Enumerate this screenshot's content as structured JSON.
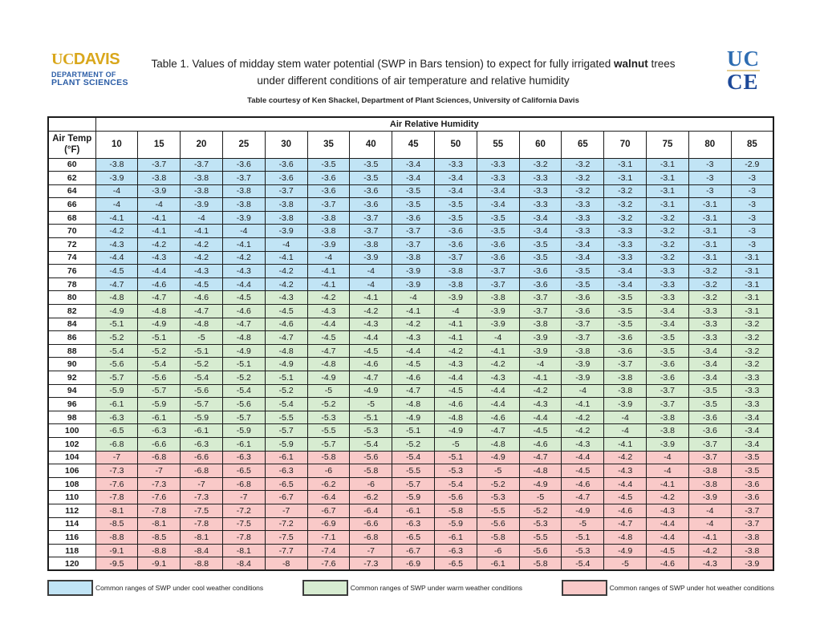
{
  "header": {
    "ucdavis_logo": {
      "uc": "UC",
      "davis": "DAVIS",
      "dept_line1": "DEPARTMENT OF",
      "dept_line2": "PLANT SCIENCES",
      "gold": "#d9a71c",
      "blue": "#2b5da6"
    },
    "title": {
      "line1_pre": "Table 1. Values of midday stem water potential (SWP in Bars tension) to expect for fully irrigated ",
      "line1_bold": "walnut",
      "line1_post": " trees",
      "line2": "under different conditions of air temperature and relative humidity",
      "courtesy": "Table courtesy of Ken Shackel, Department of Plant Sciences, University of California Davis"
    },
    "ucce_logo": {
      "top": "UC",
      "bottom": "CE",
      "top_color": "#2e6db2",
      "bottom_color": "#1c4898"
    }
  },
  "chart_data": {
    "type": "table",
    "title": "Values of midday stem water potential (SWP in Bars tension) for fully irrigated walnut trees",
    "x_axis_label": "Air Relative Humidity",
    "corner_header_line1": "Air Temp",
    "corner_header_line2": "(°F)",
    "humidity_columns": [
      "10",
      "15",
      "20",
      "25",
      "30",
      "35",
      "40",
      "45",
      "50",
      "55",
      "60",
      "65",
      "70",
      "75",
      "80",
      "85"
    ],
    "zone_colors": {
      "cool": "#c1e4f5",
      "warm": "#d7ecd1",
      "hot": "#f9c9c8"
    },
    "rows": [
      {
        "temp": "60",
        "zone": "cool",
        "values": [
          "-3.8",
          "-3.7",
          "-3.7",
          "-3.6",
          "-3.6",
          "-3.5",
          "-3.5",
          "-3.4",
          "-3.3",
          "-3.3",
          "-3.2",
          "-3.2",
          "-3.1",
          "-3.1",
          "-3",
          "-2.9"
        ]
      },
      {
        "temp": "62",
        "zone": "cool",
        "values": [
          "-3.9",
          "-3.8",
          "-3.8",
          "-3.7",
          "-3.6",
          "-3.6",
          "-3.5",
          "-3.4",
          "-3.4",
          "-3.3",
          "-3.3",
          "-3.2",
          "-3.1",
          "-3.1",
          "-3",
          "-3"
        ]
      },
      {
        "temp": "64",
        "zone": "cool",
        "values": [
          "-4",
          "-3.9",
          "-3.8",
          "-3.8",
          "-3.7",
          "-3.6",
          "-3.6",
          "-3.5",
          "-3.4",
          "-3.4",
          "-3.3",
          "-3.2",
          "-3.2",
          "-3.1",
          "-3",
          "-3"
        ]
      },
      {
        "temp": "66",
        "zone": "cool",
        "values": [
          "-4",
          "-4",
          "-3.9",
          "-3.8",
          "-3.8",
          "-3.7",
          "-3.6",
          "-3.5",
          "-3.5",
          "-3.4",
          "-3.3",
          "-3.3",
          "-3.2",
          "-3.1",
          "-3.1",
          "-3"
        ]
      },
      {
        "temp": "68",
        "zone": "cool",
        "values": [
          "-4.1",
          "-4.1",
          "-4",
          "-3.9",
          "-3.8",
          "-3.8",
          "-3.7",
          "-3.6",
          "-3.5",
          "-3.5",
          "-3.4",
          "-3.3",
          "-3.2",
          "-3.2",
          "-3.1",
          "-3"
        ]
      },
      {
        "temp": "70",
        "zone": "cool",
        "values": [
          "-4.2",
          "-4.1",
          "-4.1",
          "-4",
          "-3.9",
          "-3.8",
          "-3.7",
          "-3.7",
          "-3.6",
          "-3.5",
          "-3.4",
          "-3.3",
          "-3.3",
          "-3.2",
          "-3.1",
          "-3"
        ]
      },
      {
        "temp": "72",
        "zone": "cool",
        "values": [
          "-4.3",
          "-4.2",
          "-4.2",
          "-4.1",
          "-4",
          "-3.9",
          "-3.8",
          "-3.7",
          "-3.6",
          "-3.6",
          "-3.5",
          "-3.4",
          "-3.3",
          "-3.2",
          "-3.1",
          "-3"
        ]
      },
      {
        "temp": "74",
        "zone": "cool",
        "values": [
          "-4.4",
          "-4.3",
          "-4.2",
          "-4.2",
          "-4.1",
          "-4",
          "-3.9",
          "-3.8",
          "-3.7",
          "-3.6",
          "-3.5",
          "-3.4",
          "-3.3",
          "-3.2",
          "-3.1",
          "-3.1"
        ]
      },
      {
        "temp": "76",
        "zone": "cool",
        "values": [
          "-4.5",
          "-4.4",
          "-4.3",
          "-4.3",
          "-4.2",
          "-4.1",
          "-4",
          "-3.9",
          "-3.8",
          "-3.7",
          "-3.6",
          "-3.5",
          "-3.4",
          "-3.3",
          "-3.2",
          "-3.1"
        ]
      },
      {
        "temp": "78",
        "zone": "cool",
        "values": [
          "-4.7",
          "-4.6",
          "-4.5",
          "-4.4",
          "-4.2",
          "-4.1",
          "-4",
          "-3.9",
          "-3.8",
          "-3.7",
          "-3.6",
          "-3.5",
          "-3.4",
          "-3.3",
          "-3.2",
          "-3.1"
        ]
      },
      {
        "temp": "80",
        "zone": "warm",
        "values": [
          "-4.8",
          "-4.7",
          "-4.6",
          "-4.5",
          "-4.3",
          "-4.2",
          "-4.1",
          "-4",
          "-3.9",
          "-3.8",
          "-3.7",
          "-3.6",
          "-3.5",
          "-3.3",
          "-3.2",
          "-3.1"
        ]
      },
      {
        "temp": "82",
        "zone": "warm",
        "values": [
          "-4.9",
          "-4.8",
          "-4.7",
          "-4.6",
          "-4.5",
          "-4.3",
          "-4.2",
          "-4.1",
          "-4",
          "-3.9",
          "-3.7",
          "-3.6",
          "-3.5",
          "-3.4",
          "-3.3",
          "-3.1"
        ]
      },
      {
        "temp": "84",
        "zone": "warm",
        "values": [
          "-5.1",
          "-4.9",
          "-4.8",
          "-4.7",
          "-4.6",
          "-4.4",
          "-4.3",
          "-4.2",
          "-4.1",
          "-3.9",
          "-3.8",
          "-3.7",
          "-3.5",
          "-3.4",
          "-3.3",
          "-3.2"
        ]
      },
      {
        "temp": "86",
        "zone": "warm",
        "values": [
          "-5.2",
          "-5.1",
          "-5",
          "-4.8",
          "-4.7",
          "-4.5",
          "-4.4",
          "-4.3",
          "-4.1",
          "-4",
          "-3.9",
          "-3.7",
          "-3.6",
          "-3.5",
          "-3.3",
          "-3.2"
        ]
      },
      {
        "temp": "88",
        "zone": "warm",
        "values": [
          "-5.4",
          "-5.2",
          "-5.1",
          "-4.9",
          "-4.8",
          "-4.7",
          "-4.5",
          "-4.4",
          "-4.2",
          "-4.1",
          "-3.9",
          "-3.8",
          "-3.6",
          "-3.5",
          "-3.4",
          "-3.2"
        ]
      },
      {
        "temp": "90",
        "zone": "warm",
        "values": [
          "-5.6",
          "-5.4",
          "-5.2",
          "-5.1",
          "-4.9",
          "-4.8",
          "-4.6",
          "-4.5",
          "-4.3",
          "-4.2",
          "-4",
          "-3.9",
          "-3.7",
          "-3.6",
          "-3.4",
          "-3.2"
        ]
      },
      {
        "temp": "92",
        "zone": "warm",
        "values": [
          "-5.7",
          "-5.6",
          "-5.4",
          "-5.2",
          "-5.1",
          "-4.9",
          "-4.7",
          "-4.6",
          "-4.4",
          "-4.3",
          "-4.1",
          "-3.9",
          "-3.8",
          "-3.6",
          "-3.4",
          "-3.3"
        ]
      },
      {
        "temp": "94",
        "zone": "warm",
        "values": [
          "-5.9",
          "-5.7",
          "-5.6",
          "-5.4",
          "-5.2",
          "-5",
          "-4.9",
          "-4.7",
          "-4.5",
          "-4.4",
          "-4.2",
          "-4",
          "-3.8",
          "-3.7",
          "-3.5",
          "-3.3"
        ]
      },
      {
        "temp": "96",
        "zone": "warm",
        "values": [
          "-6.1",
          "-5.9",
          "-5.7",
          "-5.6",
          "-5.4",
          "-5.2",
          "-5",
          "-4.8",
          "-4.6",
          "-4.4",
          "-4.3",
          "-4.1",
          "-3.9",
          "-3.7",
          "-3.5",
          "-3.3"
        ]
      },
      {
        "temp": "98",
        "zone": "warm",
        "values": [
          "-6.3",
          "-6.1",
          "-5.9",
          "-5.7",
          "-5.5",
          "-5.3",
          "-5.1",
          "-4.9",
          "-4.8",
          "-4.6",
          "-4.4",
          "-4.2",
          "-4",
          "-3.8",
          "-3.6",
          "-3.4"
        ]
      },
      {
        "temp": "100",
        "zone": "warm",
        "values": [
          "-6.5",
          "-6.3",
          "-6.1",
          "-5.9",
          "-5.7",
          "-5.5",
          "-5.3",
          "-5.1",
          "-4.9",
          "-4.7",
          "-4.5",
          "-4.2",
          "-4",
          "-3.8",
          "-3.6",
          "-3.4"
        ]
      },
      {
        "temp": "102",
        "zone": "warm",
        "values": [
          "-6.8",
          "-6.6",
          "-6.3",
          "-6.1",
          "-5.9",
          "-5.7",
          "-5.4",
          "-5.2",
          "-5",
          "-4.8",
          "-4.6",
          "-4.3",
          "-4.1",
          "-3.9",
          "-3.7",
          "-3.4"
        ]
      },
      {
        "temp": "104",
        "zone": "hot",
        "values": [
          "-7",
          "-6.8",
          "-6.6",
          "-6.3",
          "-6.1",
          "-5.8",
          "-5.6",
          "-5.4",
          "-5.1",
          "-4.9",
          "-4.7",
          "-4.4",
          "-4.2",
          "-4",
          "-3.7",
          "-3.5"
        ]
      },
      {
        "temp": "106",
        "zone": "hot",
        "values": [
          "-7.3",
          "-7",
          "-6.8",
          "-6.5",
          "-6.3",
          "-6",
          "-5.8",
          "-5.5",
          "-5.3",
          "-5",
          "-4.8",
          "-4.5",
          "-4.3",
          "-4",
          "-3.8",
          "-3.5"
        ]
      },
      {
        "temp": "108",
        "zone": "hot",
        "values": [
          "-7.6",
          "-7.3",
          "-7",
          "-6.8",
          "-6.5",
          "-6.2",
          "-6",
          "-5.7",
          "-5.4",
          "-5.2",
          "-4.9",
          "-4.6",
          "-4.4",
          "-4.1",
          "-3.8",
          "-3.6"
        ]
      },
      {
        "temp": "110",
        "zone": "hot",
        "values": [
          "-7.8",
          "-7.6",
          "-7.3",
          "-7",
          "-6.7",
          "-6.4",
          "-6.2",
          "-5.9",
          "-5.6",
          "-5.3",
          "-5",
          "-4.7",
          "-4.5",
          "-4.2",
          "-3.9",
          "-3.6"
        ]
      },
      {
        "temp": "112",
        "zone": "hot",
        "values": [
          "-8.1",
          "-7.8",
          "-7.5",
          "-7.2",
          "-7",
          "-6.7",
          "-6.4",
          "-6.1",
          "-5.8",
          "-5.5",
          "-5.2",
          "-4.9",
          "-4.6",
          "-4.3",
          "-4",
          "-3.7"
        ]
      },
      {
        "temp": "114",
        "zone": "hot",
        "values": [
          "-8.5",
          "-8.1",
          "-7.8",
          "-7.5",
          "-7.2",
          "-6.9",
          "-6.6",
          "-6.3",
          "-5.9",
          "-5.6",
          "-5.3",
          "-5",
          "-4.7",
          "-4.4",
          "-4",
          "-3.7"
        ]
      },
      {
        "temp": "116",
        "zone": "hot",
        "values": [
          "-8.8",
          "-8.5",
          "-8.1",
          "-7.8",
          "-7.5",
          "-7.1",
          "-6.8",
          "-6.5",
          "-6.1",
          "-5.8",
          "-5.5",
          "-5.1",
          "-4.8",
          "-4.4",
          "-4.1",
          "-3.8"
        ]
      },
      {
        "temp": "118",
        "zone": "hot",
        "values": [
          "-9.1",
          "-8.8",
          "-8.4",
          "-8.1",
          "-7.7",
          "-7.4",
          "-7",
          "-6.7",
          "-6.3",
          "-6",
          "-5.6",
          "-5.3",
          "-4.9",
          "-4.5",
          "-4.2",
          "-3.8"
        ]
      },
      {
        "temp": "120",
        "zone": "hot",
        "values": [
          "-9.5",
          "-9.1",
          "-8.8",
          "-8.4",
          "-8",
          "-7.6",
          "-7.3",
          "-6.9",
          "-6.5",
          "-6.1",
          "-5.8",
          "-5.4",
          "-5",
          "-4.6",
          "-4.3",
          "-3.9"
        ]
      }
    ]
  },
  "legend": {
    "items": [
      {
        "zone": "cool",
        "label": "Common ranges of SWP under cool weather conditions"
      },
      {
        "zone": "warm",
        "label": "Common ranges of SWP under warm weather conditions"
      },
      {
        "zone": "hot",
        "label": "Common ranges of SWP under hot weather conditions"
      }
    ]
  }
}
